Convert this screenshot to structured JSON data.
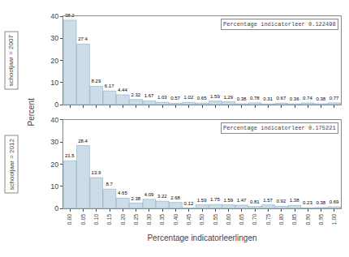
{
  "chart_data": [
    {
      "type": "bar",
      "title": "schooljaar = 2007",
      "annotations": [
        "Percentage indicatorleer 0.122498"
      ],
      "ylabel": "Percent",
      "categories": [
        "0.00",
        "0.05",
        "0.10",
        "0.15",
        "0.20",
        "0.25",
        "0.30",
        "0.35",
        "0.40",
        "0.45",
        "0.50",
        "0.55",
        "0.60",
        "0.65",
        "0.70",
        "0.75",
        "0.80",
        "0.85",
        "0.90",
        "0.95",
        "1.00"
      ],
      "values": [
        38.2,
        27.4,
        8.29,
        6.17,
        4.44,
        2.32,
        1.67,
        1.03,
        0.57,
        1.02,
        0.65,
        1.59,
        1.29,
        0.38,
        0.78,
        0.31,
        0.67,
        0.36,
        0.74,
        0.38,
        0.77
      ],
      "color": "#ccdde8",
      "ylim": [
        0,
        40
      ],
      "yticks": [
        0,
        10,
        20,
        30,
        40
      ],
      "grid": false,
      "data_labels": true,
      "tick_labels": "y"
    },
    {
      "type": "bar",
      "title": "schooljaar = 2012",
      "annotations": [
        "Percentage indicatorleer 0.175221"
      ],
      "xlabel": "Percentage indicatorleerlingen",
      "categories": [
        "0.00",
        "0.05",
        "0.10",
        "0.15",
        "0.20",
        "0.25",
        "0.30",
        "0.35",
        "0.40",
        "0.45",
        "0.50",
        "0.55",
        "0.60",
        "0.65",
        "0.70",
        "0.75",
        "0.80",
        "0.85",
        "0.90",
        "0.95",
        "1.00"
      ],
      "values": [
        21.5,
        28.4,
        13.9,
        8.7,
        4.65,
        2.38,
        4.09,
        3.22,
        2.68,
        0.12,
        1.59,
        1.75,
        1.59,
        1.47,
        0.81,
        1.57,
        0.92,
        1.38,
        0.23,
        0.38,
        0.69
      ],
      "color": "#ccdde8",
      "ylim": [
        0,
        40
      ],
      "yticks": [
        0,
        10,
        20,
        30,
        40
      ],
      "grid": false,
      "data_labels": true
    }
  ]
}
